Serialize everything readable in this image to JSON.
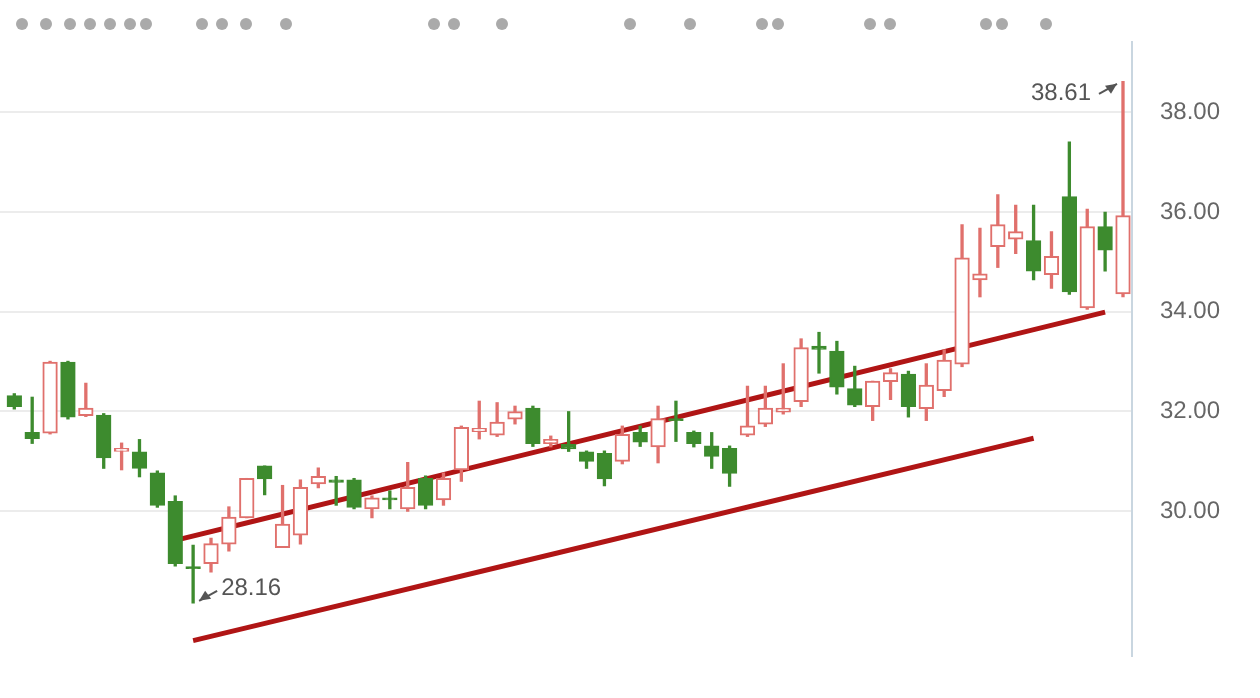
{
  "chart_data": {
    "type": "candlestick",
    "categories": [
      null,
      null,
      null,
      null,
      null,
      null,
      null,
      null,
      null,
      null,
      null,
      null,
      null,
      null,
      null,
      null,
      null,
      null,
      null,
      null,
      null,
      null,
      null,
      null,
      null,
      null,
      null,
      null,
      null,
      null,
      null,
      null,
      null,
      null,
      null,
      null,
      null,
      null,
      null,
      null,
      null,
      null,
      null,
      null,
      null,
      null,
      null,
      null,
      null,
      null,
      null,
      null,
      null,
      null,
      null,
      null,
      null,
      null,
      null,
      null,
      null,
      null,
      null
    ],
    "ohlc": [
      [
        32.31,
        32.35,
        32.05,
        32.1
      ],
      [
        31.57,
        32.28,
        31.36,
        31.46
      ],
      [
        31.57,
        33.0,
        31.55,
        32.98
      ],
      [
        32.98,
        33.0,
        31.85,
        31.89
      ],
      [
        31.92,
        32.56,
        31.9,
        32.06
      ],
      [
        31.92,
        31.95,
        30.86,
        31.07
      ],
      [
        31.2,
        31.36,
        30.83,
        31.25
      ],
      [
        31.18,
        31.43,
        30.69,
        30.86
      ],
      [
        30.76,
        30.8,
        30.08,
        30.12
      ],
      [
        30.19,
        30.3,
        28.9,
        28.95
      ],
      [
        28.88,
        29.31,
        28.16,
        28.85
      ],
      [
        28.95,
        29.45,
        28.78,
        29.34
      ],
      [
        29.34,
        30.08,
        29.2,
        29.87
      ],
      [
        29.87,
        30.65,
        29.87,
        30.65
      ],
      [
        30.9,
        30.9,
        30.33,
        30.65
      ],
      [
        29.27,
        30.51,
        29.27,
        29.73
      ],
      [
        29.52,
        30.62,
        29.34,
        30.47
      ],
      [
        30.55,
        30.86,
        30.47,
        30.69
      ],
      [
        30.62,
        30.69,
        30.12,
        30.58
      ],
      [
        30.62,
        30.65,
        30.05,
        30.08
      ],
      [
        30.05,
        30.3,
        29.87,
        30.26
      ],
      [
        30.26,
        30.4,
        30.05,
        30.23
      ],
      [
        30.05,
        30.97,
        30.0,
        30.47
      ],
      [
        30.65,
        30.7,
        30.05,
        30.12
      ],
      [
        30.23,
        30.76,
        30.12,
        30.65
      ],
      [
        30.83,
        31.7,
        30.6,
        31.67
      ],
      [
        31.6,
        32.2,
        31.45,
        31.65
      ],
      [
        31.53,
        32.17,
        31.5,
        31.78
      ],
      [
        31.85,
        32.1,
        31.75,
        31.99
      ],
      [
        32.06,
        32.1,
        31.3,
        31.36
      ],
      [
        31.36,
        31.5,
        31.29,
        31.43
      ],
      [
        31.33,
        31.99,
        31.2,
        31.25
      ],
      [
        31.18,
        31.2,
        30.86,
        31.0
      ],
      [
        31.15,
        31.2,
        30.51,
        30.65
      ],
      [
        31.0,
        31.7,
        30.95,
        31.53
      ],
      [
        31.57,
        31.7,
        31.3,
        31.39
      ],
      [
        31.29,
        32.1,
        30.97,
        31.85
      ],
      [
        31.85,
        32.2,
        31.4,
        31.82
      ],
      [
        31.57,
        31.6,
        31.29,
        31.36
      ],
      [
        31.3,
        31.57,
        30.86,
        31.1
      ],
      [
        31.25,
        31.3,
        30.5,
        30.76
      ],
      [
        31.53,
        32.5,
        31.5,
        31.7
      ],
      [
        31.75,
        32.5,
        31.7,
        32.06
      ],
      [
        31.99,
        32.95,
        31.95,
        32.06
      ],
      [
        32.2,
        33.45,
        32.1,
        33.27
      ],
      [
        33.3,
        33.58,
        32.77,
        33.25
      ],
      [
        33.2,
        33.4,
        32.35,
        32.49
      ],
      [
        32.45,
        32.9,
        32.1,
        32.13
      ],
      [
        32.1,
        32.6,
        31.82,
        32.6
      ],
      [
        32.6,
        32.85,
        32.24,
        32.77
      ],
      [
        32.74,
        32.8,
        31.89,
        32.1
      ],
      [
        32.06,
        32.95,
        31.82,
        32.52
      ],
      [
        32.42,
        33.23,
        32.3,
        33.02
      ],
      [
        32.95,
        35.74,
        32.9,
        35.07
      ],
      [
        34.64,
        35.67,
        34.3,
        34.75
      ],
      [
        35.31,
        36.34,
        34.89,
        35.74
      ],
      [
        35.46,
        36.13,
        35.17,
        35.6
      ],
      [
        35.42,
        36.13,
        34.64,
        34.82
      ],
      [
        34.75,
        35.6,
        34.47,
        35.1
      ],
      [
        36.3,
        37.4,
        34.35,
        34.4
      ],
      [
        34.08,
        36.05,
        34.05,
        35.7
      ],
      [
        35.7,
        35.99,
        34.82,
        35.24
      ],
      [
        34.36,
        38.61,
        34.3,
        35.92
      ]
    ],
    "colors": [
      "#3d8b2e",
      "#3d8b2e",
      "#e0706c",
      "#3d8b2e",
      "#e0706c",
      "#3d8b2e",
      "#e0706c",
      "#3d8b2e",
      "#3d8b2e",
      "#3d8b2e",
      "#3d8b2e",
      "#e0706c",
      "#e0706c",
      "#e0706c",
      "#3d8b2e",
      "#e0706c",
      "#e0706c",
      "#e0706c",
      "#3d8b2e",
      "#3d8b2e",
      "#e0706c",
      "#3d8b2e",
      "#e0706c",
      "#3d8b2e",
      "#e0706c",
      "#e0706c",
      "#e0706c",
      "#e0706c",
      "#e0706c",
      "#3d8b2e",
      "#e0706c",
      "#3d8b2e",
      "#3d8b2e",
      "#3d8b2e",
      "#e0706c",
      "#3d8b2e",
      "#e0706c",
      "#3d8b2e",
      "#3d8b2e",
      "#3d8b2e",
      "#3d8b2e",
      "#e0706c",
      "#e0706c",
      "#e0706c",
      "#e0706c",
      "#3d8b2e",
      "#3d8b2e",
      "#3d8b2e",
      "#e0706c",
      "#e0706c",
      "#3d8b2e",
      "#e0706c",
      "#e0706c",
      "#e0706c",
      "#e0706c",
      "#e0706c",
      "#e0706c",
      "#3d8b2e",
      "#e0706c",
      "#3d8b2e",
      "#e0706c",
      "#3d8b2e",
      "#e0706c"
    ],
    "series": [
      {
        "type": "line",
        "values": [
          null,
          null,
          null,
          null,
          null,
          null,
          null,
          null,
          null,
          29.41,
          null,
          null,
          null,
          null,
          null,
          null,
          null,
          null,
          null,
          null,
          null,
          null,
          null,
          null,
          null,
          null,
          null,
          null,
          null,
          null,
          null,
          null,
          null,
          null,
          null,
          null,
          null,
          null,
          null,
          null,
          null,
          null,
          null,
          null,
          null,
          null,
          null,
          null,
          null,
          null,
          null,
          null,
          null,
          null,
          null,
          null,
          null,
          null,
          null,
          null,
          null,
          33.99,
          null
        ],
        "color": "#b01515"
      },
      {
        "type": "line",
        "values": [
          null,
          null,
          null,
          null,
          null,
          null,
          null,
          null,
          null,
          null,
          27.4,
          null,
          null,
          null,
          null,
          null,
          null,
          null,
          null,
          null,
          null,
          null,
          null,
          null,
          null,
          null,
          null,
          null,
          null,
          null,
          null,
          null,
          null,
          null,
          null,
          null,
          null,
          null,
          null,
          null,
          null,
          null,
          null,
          null,
          null,
          null,
          null,
          null,
          null,
          null,
          null,
          null,
          null,
          null,
          null,
          null,
          null,
          31.46,
          null,
          null,
          null,
          null,
          null
        ],
        "color": "#b01515"
      }
    ],
    "ylim": [
      27.1,
      39.4
    ],
    "yticks": [
      {
        "value": 30,
        "label": "30.00"
      },
      {
        "value": 32,
        "label": "32.00"
      },
      {
        "value": 34,
        "label": "34.00"
      },
      {
        "value": 36,
        "label": "36.00"
      },
      {
        "value": 38,
        "label": "38.00"
      }
    ],
    "grid": "y",
    "tick_labels": "y",
    "legend": false,
    "annotations": [
      "28.16",
      "38.61"
    ]
  }
}
